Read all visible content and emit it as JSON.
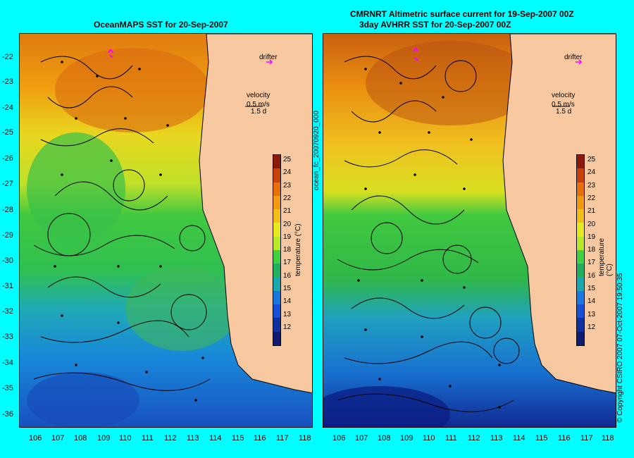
{
  "left_panel": {
    "title": "OceanMAPS SST for 20-Sep-2007",
    "annotation_drifter": "drifter",
    "annotation_velocity": "velocity",
    "annotation_speed": "0.5 m/s",
    "annotation_time": "1.5 d"
  },
  "right_panel": {
    "title_line1": "CMRNRT Altimetric surface current for 19-Sep-2007 00Z",
    "title_line2": "3day AVHRR SST for 20-Sep-2007 00Z",
    "annotation_drifter": "drifter",
    "annotation_velocity": "velocity",
    "annotation_speed": "0.5 m/s",
    "annotation_time": "1.5 d"
  },
  "side_text": {
    "file_id": "ocean_fc_20070920_000",
    "copyright": "© Copyright CSIRO 2007 07-Oct-2007 19:50:35"
  },
  "axes": {
    "y_ticks": [
      "-22",
      "-23",
      "-24",
      "-25",
      "-26",
      "-27",
      "-28",
      "-29",
      "-30",
      "-31",
      "-32",
      "-33",
      "-34",
      "-35",
      "-36"
    ],
    "x_ticks": [
      "106",
      "107",
      "108",
      "109",
      "110",
      "111",
      "112",
      "113",
      "114",
      "115",
      "116",
      "117",
      "118"
    ]
  },
  "colorbar": {
    "label": "temperature (°C)",
    "ticks": [
      "25",
      "24",
      "23",
      "22",
      "21",
      "20",
      "19",
      "18",
      "17",
      "16",
      "15",
      "14",
      "13",
      "12"
    ],
    "colors": [
      "#8b1a0a",
      "#c8420a",
      "#e8700a",
      "#f09a10",
      "#f0c018",
      "#e8e820",
      "#b8e828",
      "#40d040",
      "#20b060",
      "#18a8b0",
      "#1878e0",
      "#1850d8",
      "#1030a0",
      "#101a70"
    ]
  },
  "colors": {
    "background": "#00ffff",
    "land": "#f8c8a0",
    "drifter": "#ff00ff"
  }
}
